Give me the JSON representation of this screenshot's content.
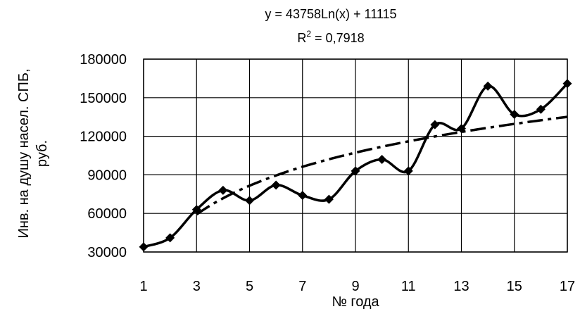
{
  "chart_data": {
    "type": "line",
    "title": "",
    "xlabel": "№ года",
    "ylabel_lines": [
      "Инв. на душу насел. СПБ,",
      "руб."
    ],
    "xlim": [
      1,
      17
    ],
    "ylim": [
      30000,
      180000
    ],
    "x_ticks": [
      1,
      3,
      5,
      7,
      9,
      11,
      13,
      15,
      17
    ],
    "x_tick_labels": [
      "1",
      "3",
      "5",
      "7",
      "9",
      "11",
      "13",
      "15",
      "17"
    ],
    "y_ticks": [
      30000,
      60000,
      90000,
      120000,
      150000,
      180000
    ],
    "y_tick_labels": [
      "30000",
      "60000",
      "90000",
      "120000",
      "150000",
      "180000"
    ],
    "grid": true,
    "legend": "none",
    "series": [
      {
        "style": "solid-with-diamond-markers",
        "color": "#000000",
        "x": [
          1,
          2,
          3,
          4,
          5,
          6,
          7,
          8,
          9,
          10,
          11,
          12,
          13,
          14,
          15,
          16,
          17
        ],
        "values": [
          34000,
          41000,
          63000,
          78000,
          70000,
          82000,
          74000,
          71000,
          93000,
          102000,
          93000,
          129000,
          126000,
          159000,
          137000,
          141000,
          161000
        ]
      },
      {
        "style": "dash-dot-trendline",
        "color": "#000000",
        "trend": "logarithmic",
        "x_range": [
          3,
          17
        ]
      }
    ],
    "trendline": {
      "equation": "y = 43758Ln(x) + 11115",
      "r2_prefix": "R",
      "r2_sup": "2",
      "r2_value": " = 0,7918",
      "a": 43758,
      "b": 11115
    }
  }
}
